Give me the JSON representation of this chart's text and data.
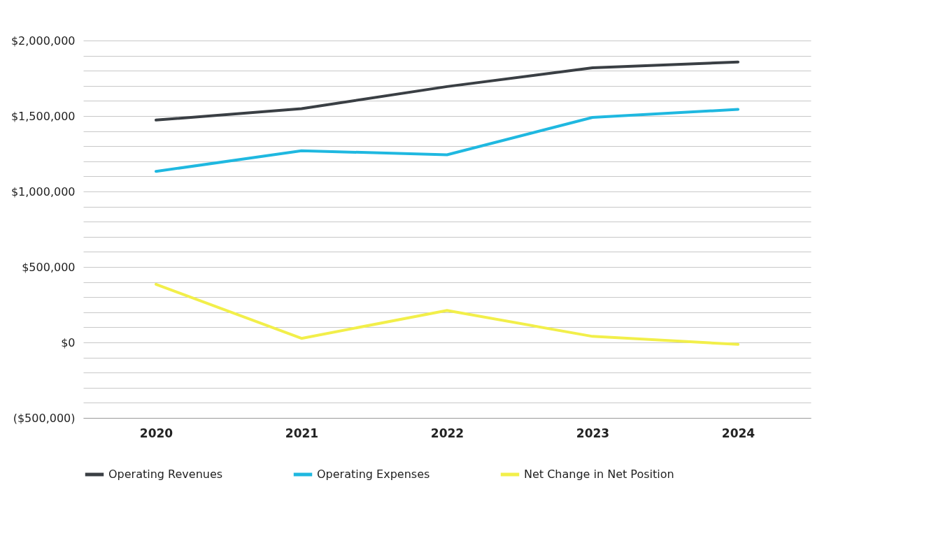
{
  "chart_data": {
    "type": "line",
    "categories": [
      "2020",
      "2021",
      "2022",
      "2023",
      "2024"
    ],
    "series": [
      {
        "name": "Operating Revenues",
        "color": "#3a3f44",
        "values": [
          1473000,
          1549000,
          1695000,
          1819000,
          1858000
        ]
      },
      {
        "name": "Operating Expenses",
        "color": "#1fb8e0",
        "values": [
          1133000,
          1270000,
          1243000,
          1491000,
          1544000
        ]
      },
      {
        "name": "Net Change in Net Position",
        "color": "#f2ef4a",
        "values": [
          385000,
          27000,
          212000,
          40000,
          -13000
        ]
      }
    ],
    "ylim": [
      -500000,
      2000000
    ],
    "yticks": [
      {
        "value": -500000,
        "label": "($500,000)"
      },
      {
        "value": -400000,
        "label": null
      },
      {
        "value": -300000,
        "label": null
      },
      {
        "value": -200000,
        "label": null
      },
      {
        "value": -100000,
        "label": null
      },
      {
        "value": 0,
        "label": "$0"
      },
      {
        "value": 100000,
        "label": null
      },
      {
        "value": 200000,
        "label": null
      },
      {
        "value": 300000,
        "label": null
      },
      {
        "value": 400000,
        "label": null
      },
      {
        "value": 500000,
        "label": "$500,000"
      },
      {
        "value": 600000,
        "label": null
      },
      {
        "value": 700000,
        "label": null
      },
      {
        "value": 800000,
        "label": null
      },
      {
        "value": 900000,
        "label": null
      },
      {
        "value": 1000000,
        "label": "$1,000,000"
      },
      {
        "value": 1100000,
        "label": null
      },
      {
        "value": 1200000,
        "label": null
      },
      {
        "value": 1300000,
        "label": null
      },
      {
        "value": 1400000,
        "label": null
      },
      {
        "value": 1500000,
        "label": "$1,500,000"
      },
      {
        "value": 1600000,
        "label": null
      },
      {
        "value": 1700000,
        "label": null
      },
      {
        "value": 1800000,
        "label": null
      },
      {
        "value": 1900000,
        "label": null
      },
      {
        "value": 2000000,
        "label": "$2,000,000"
      }
    ],
    "grid": "y",
    "legend": "bottom",
    "marker": "none",
    "line_style": "solid"
  }
}
